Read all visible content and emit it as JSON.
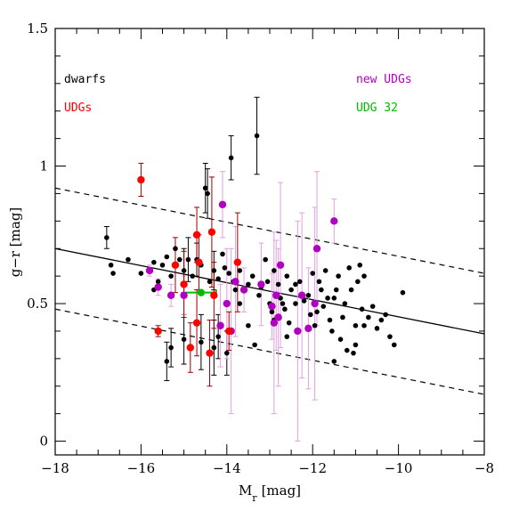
{
  "chart_data": {
    "type": "scatter",
    "xlabel": "M",
    "xlabel_sub": "r",
    "xlabel_unit": "[mag]",
    "ylabel": "g−r [mag]",
    "xlim": [
      -18,
      -8
    ],
    "ylim": [
      -0.05,
      1.5
    ],
    "x_ticks": [
      -18,
      -16,
      -14,
      -12,
      -10,
      -8
    ],
    "x_tick_labels": [
      "−18",
      "−16",
      "−14",
      "−12",
      "−10",
      "−8"
    ],
    "y_ticks": [
      0,
      0.5,
      1,
      1.5
    ],
    "y_tick_labels": [
      "0",
      "0.5",
      "1",
      "1.5"
    ],
    "grid": false,
    "colors": {
      "dwarfs": "#000000",
      "udgs": "#ff0000",
      "new_udgs": "#b000c0",
      "new_udg_err": "#e0a0e0",
      "udg32": "#00bb00",
      "udg_err": "#9a0000"
    },
    "legend": {
      "dwarfs": "dwarfs",
      "udgs": "UDGs",
      "new_udgs": "new UDGs",
      "udg32": "UDG 32"
    },
    "fit_line": {
      "x": [
        -18,
        -8
      ],
      "y": [
        0.7,
        0.39
      ]
    },
    "upper_line": {
      "x": [
        -18,
        -8
      ],
      "y": [
        0.92,
        0.61
      ]
    },
    "lower_line": {
      "x": [
        -18,
        -8
      ],
      "y": [
        0.48,
        0.17
      ]
    },
    "series": [
      {
        "name": "dwarfs",
        "points": [
          [
            -16.8,
            0.74
          ],
          [
            -16.7,
            0.64
          ],
          [
            -16.65,
            0.61
          ],
          [
            -16.3,
            0.66
          ],
          [
            -16.0,
            0.61
          ],
          [
            -15.8,
            0.62
          ],
          [
            -15.7,
            0.65
          ],
          [
            -15.6,
            0.58
          ],
          [
            -15.5,
            0.64
          ],
          [
            -15.4,
            0.67
          ],
          [
            -15.3,
            0.6
          ],
          [
            -15.2,
            0.7
          ],
          [
            -15.1,
            0.66
          ],
          [
            -15.0,
            0.62
          ],
          [
            -14.9,
            0.66
          ],
          [
            -14.8,
            0.6
          ],
          [
            -14.7,
            0.66
          ],
          [
            -14.6,
            0.64
          ],
          [
            -14.5,
            0.92
          ],
          [
            -14.45,
            0.9
          ],
          [
            -14.4,
            0.58
          ],
          [
            -14.3,
            0.62
          ],
          [
            -14.2,
            0.59
          ],
          [
            -14.1,
            0.68
          ],
          [
            -14.05,
            0.63
          ],
          [
            -13.95,
            0.61
          ],
          [
            -13.9,
            1.03
          ],
          [
            -13.85,
            0.58
          ],
          [
            -13.8,
            0.55
          ],
          [
            -13.7,
            0.62
          ],
          [
            -13.6,
            0.55
          ],
          [
            -13.5,
            0.57
          ],
          [
            -13.4,
            0.6
          ],
          [
            -13.35,
            0.35
          ],
          [
            -13.3,
            1.11
          ],
          [
            -13.25,
            0.53
          ],
          [
            -13.2,
            0.56
          ],
          [
            -13.1,
            0.66
          ],
          [
            -13.05,
            0.58
          ],
          [
            -13.0,
            0.5
          ],
          [
            -12.95,
            0.47
          ],
          [
            -12.9,
            0.62
          ],
          [
            -12.8,
            0.57
          ],
          [
            -12.75,
            0.52
          ],
          [
            -12.7,
            0.5
          ],
          [
            -12.65,
            0.48
          ],
          [
            -12.6,
            0.6
          ],
          [
            -12.55,
            0.43
          ],
          [
            -12.5,
            0.55
          ],
          [
            -12.4,
            0.5
          ],
          [
            -12.35,
            0.4
          ],
          [
            -12.3,
            0.58
          ],
          [
            -12.2,
            0.51
          ],
          [
            -12.1,
            0.53
          ],
          [
            -12.05,
            0.46
          ],
          [
            -11.95,
            0.42
          ],
          [
            -11.9,
            0.47
          ],
          [
            -11.8,
            0.55
          ],
          [
            -11.75,
            0.49
          ],
          [
            -11.7,
            0.62
          ],
          [
            -11.65,
            0.52
          ],
          [
            -11.6,
            0.44
          ],
          [
            -11.55,
            0.4
          ],
          [
            -11.5,
            0.52
          ],
          [
            -11.45,
            0.55
          ],
          [
            -11.4,
            0.6
          ],
          [
            -11.35,
            0.37
          ],
          [
            -11.3,
            0.45
          ],
          [
            -11.25,
            0.5
          ],
          [
            -11.2,
            0.33
          ],
          [
            -11.15,
            0.63
          ],
          [
            -11.1,
            0.55
          ],
          [
            -11.05,
            0.32
          ],
          [
            -11.0,
            0.42
          ],
          [
            -10.95,
            0.58
          ],
          [
            -10.9,
            0.64
          ],
          [
            -10.85,
            0.48
          ],
          [
            -10.8,
            0.6
          ],
          [
            -10.7,
            0.45
          ],
          [
            -10.6,
            0.49
          ],
          [
            -10.5,
            0.41
          ],
          [
            -10.4,
            0.44
          ],
          [
            -10.3,
            0.46
          ],
          [
            -10.2,
            0.38
          ],
          [
            -10.1,
            0.35
          ],
          [
            -9.9,
            0.54
          ],
          [
            -11.0,
            0.35
          ],
          [
            -10.8,
            0.42
          ],
          [
            -11.5,
            0.29
          ],
          [
            -14.2,
            0.38
          ],
          [
            -14.0,
            0.32
          ],
          [
            -14.6,
            0.36
          ],
          [
            -14.3,
            0.34
          ],
          [
            -15.0,
            0.37
          ],
          [
            -15.4,
            0.29
          ],
          [
            -15.3,
            0.34
          ],
          [
            -15.7,
            0.55
          ],
          [
            -12.0,
            0.61
          ],
          [
            -12.4,
            0.57
          ],
          [
            -11.85,
            0.58
          ],
          [
            -12.9,
            0.44
          ],
          [
            -13.7,
            0.5
          ],
          [
            -13.5,
            0.42
          ],
          [
            -12.6,
            0.38
          ]
        ],
        "errors": [
          0.04,
          0,
          0,
          0,
          0,
          0,
          0,
          0,
          0,
          0,
          0,
          0,
          0,
          0.08,
          0.08,
          0,
          0.06,
          0,
          0.09,
          0.09,
          0,
          0.07,
          0,
          0,
          0,
          0,
          0.08,
          0,
          0,
          0,
          0,
          0,
          0,
          0,
          0.14,
          0,
          0,
          0,
          0,
          0,
          0,
          0,
          0,
          0,
          0,
          0,
          0,
          0,
          0,
          0,
          0,
          0,
          0,
          0,
          0,
          0,
          0,
          0,
          0,
          0,
          0,
          0,
          0,
          0,
          0,
          0,
          0,
          0,
          0,
          0,
          0,
          0,
          0,
          0,
          0,
          0,
          0,
          0,
          0,
          0,
          0,
          0,
          0,
          0,
          0,
          0,
          0,
          0,
          0,
          0.08,
          0.08,
          0.1,
          0.1,
          0.09,
          0.07,
          0.07,
          0,
          0,
          0,
          0,
          0,
          0,
          0,
          0
        ]
      },
      {
        "name": "UDGs",
        "points": [
          [
            -16.0,
            0.95
          ],
          [
            -15.2,
            0.64
          ],
          [
            -15.6,
            0.4
          ],
          [
            -14.7,
            0.75
          ],
          [
            -14.65,
            0.65
          ],
          [
            -15.0,
            0.57
          ],
          [
            -14.7,
            0.43
          ],
          [
            -14.85,
            0.34
          ],
          [
            -14.35,
            0.76
          ],
          [
            -14.3,
            0.53
          ],
          [
            -13.95,
            0.4
          ],
          [
            -13.75,
            0.65
          ],
          [
            -14.4,
            0.32
          ]
        ],
        "errors": [
          0.06,
          0.1,
          0.02,
          0.1,
          0.1,
          0.12,
          0.12,
          0.09,
          0.2,
          0.12,
          0.07,
          0.18,
          0.12
        ]
      },
      {
        "name": "new UDGs",
        "points": [
          [
            -15.8,
            0.62
          ],
          [
            -15.6,
            0.56
          ],
          [
            -15.3,
            0.53
          ],
          [
            -15.0,
            0.53
          ],
          [
            -14.1,
            0.86
          ],
          [
            -14.0,
            0.5
          ],
          [
            -14.15,
            0.42
          ],
          [
            -13.9,
            0.4
          ],
          [
            -13.8,
            0.58
          ],
          [
            -13.6,
            0.55
          ],
          [
            -13.2,
            0.57
          ],
          [
            -12.95,
            0.49
          ],
          [
            -12.85,
            0.53
          ],
          [
            -12.9,
            0.43
          ],
          [
            -12.8,
            0.45
          ],
          [
            -12.75,
            0.64
          ],
          [
            -12.35,
            0.4
          ],
          [
            -12.25,
            0.53
          ],
          [
            -12.1,
            0.41
          ],
          [
            -11.95,
            0.5
          ],
          [
            -11.9,
            0.7
          ],
          [
            -11.5,
            0.8
          ]
        ],
        "errors": [
          0.02,
          0.03,
          0.04,
          0.07,
          0.12,
          0.2,
          0.15,
          0.3,
          0.2,
          0.08,
          0.15,
          0.12,
          0.2,
          0.33,
          0.25,
          0.3,
          0.4,
          0.3,
          0.22,
          0.35,
          0.28,
          0.08
        ]
      },
      {
        "name": "UDG 32",
        "points": [
          [
            -14.6,
            0.54
          ]
        ],
        "xerr": [
          0.35
        ]
      }
    ]
  }
}
